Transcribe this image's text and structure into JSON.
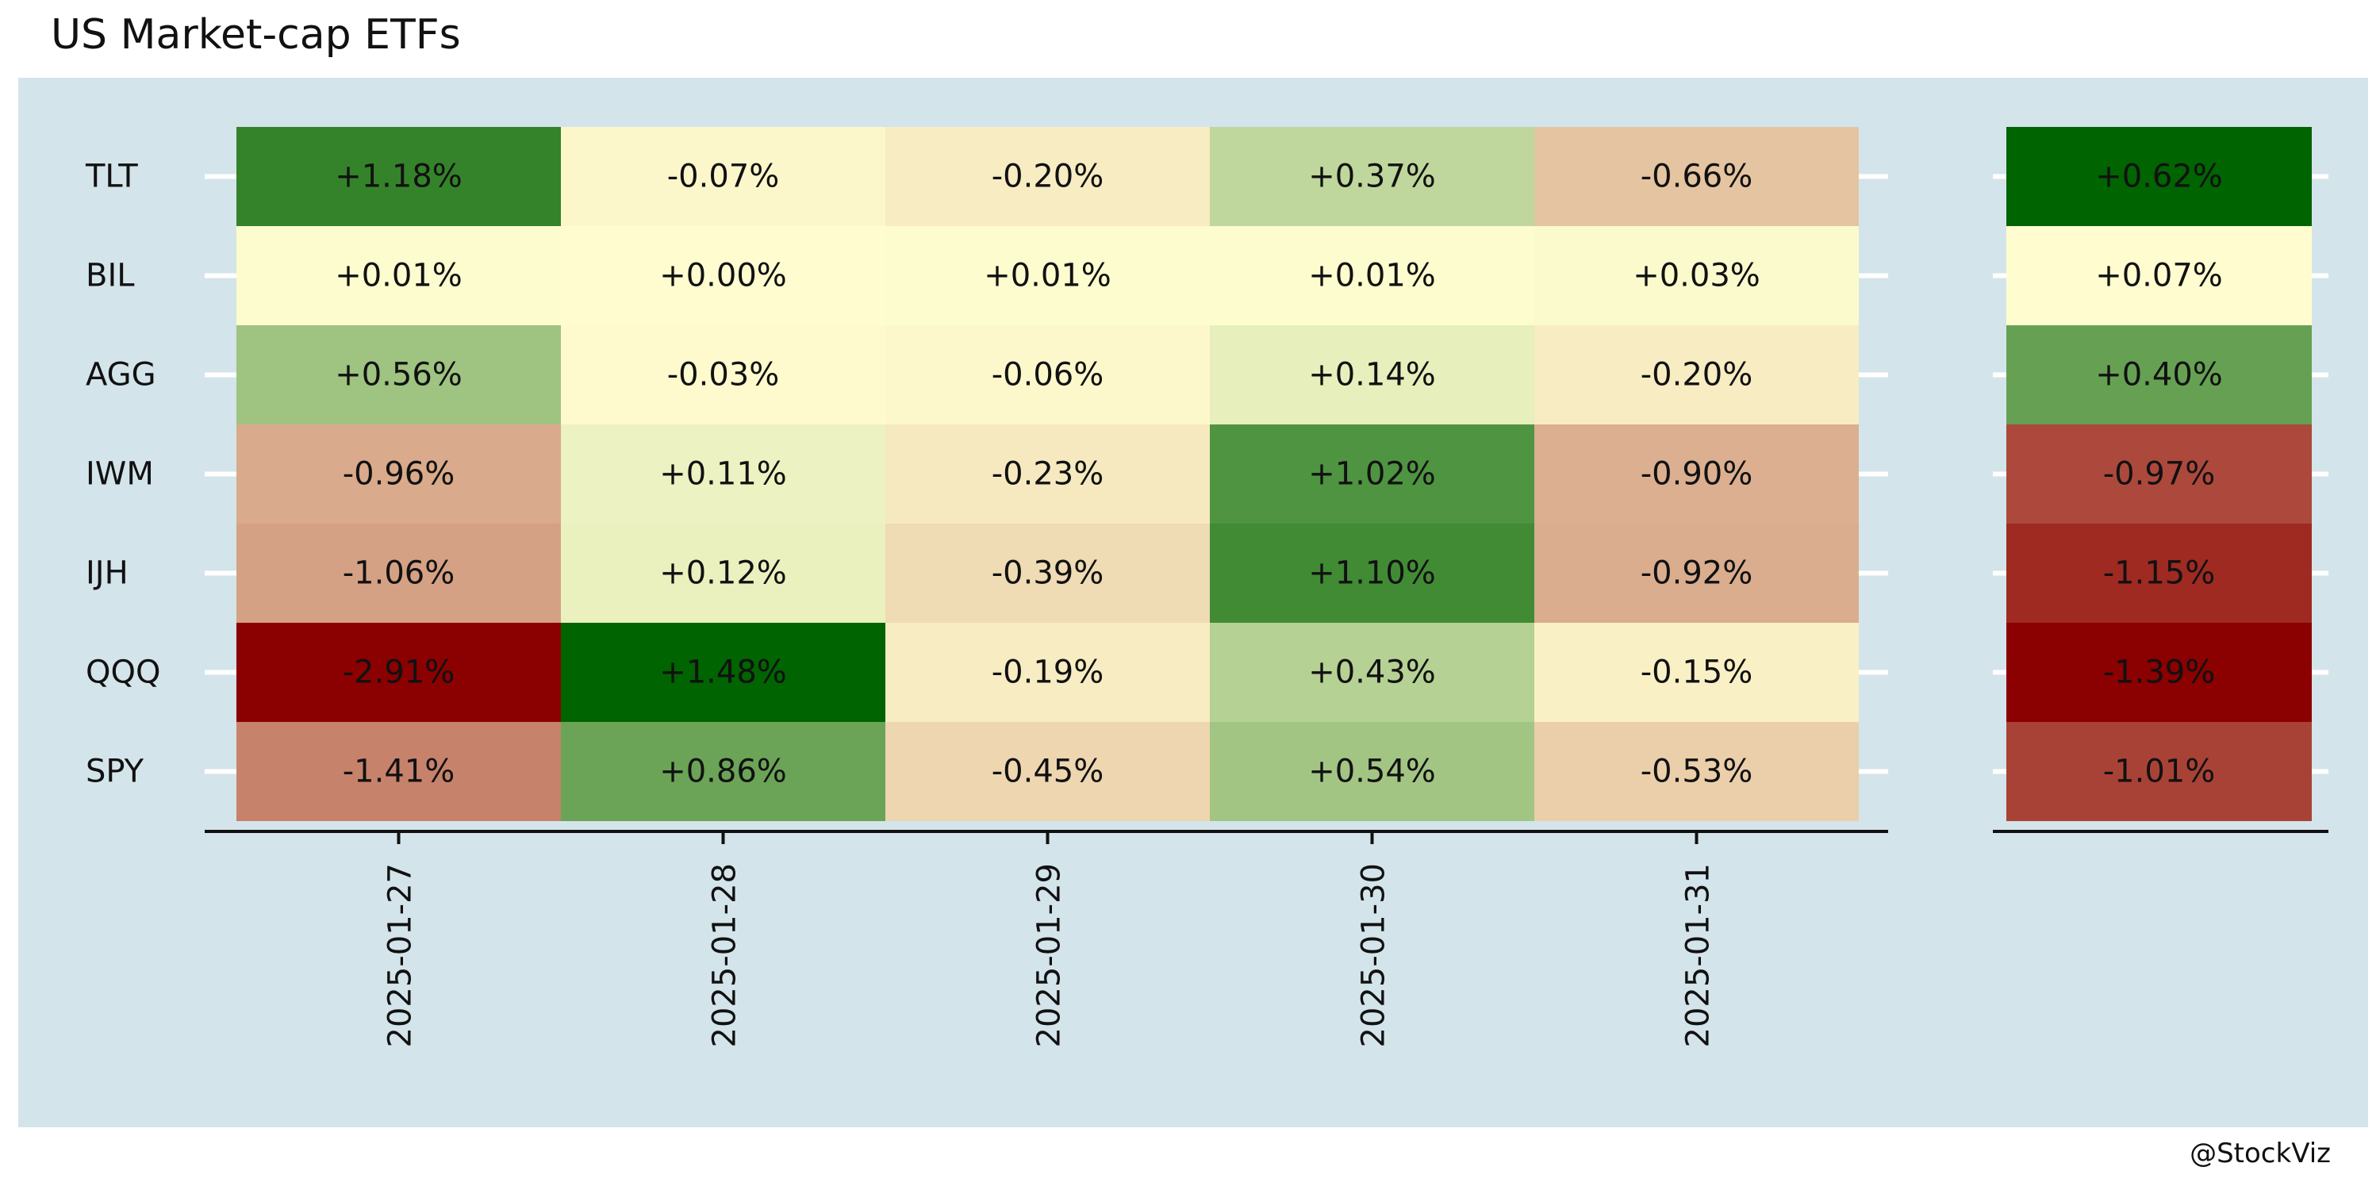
{
  "title": "US Market-cap ETFs",
  "credit": "@StockViz",
  "colors": {
    "panel_background": "#d4e4eb",
    "tick_marks": "#ffffff",
    "axis_line": "#111111",
    "text": "#111111",
    "scale_low": "#8b0000",
    "scale_mid": "#fffdd0",
    "scale_high": "#006400"
  },
  "chart_data": [
    {
      "type": "heatmap",
      "rows": [
        "TLT",
        "BIL",
        "AGG",
        "IWM",
        "IJH",
        "QQQ",
        "SPY"
      ],
      "columns": [
        "2025-01-27",
        "2025-01-28",
        "2025-01-29",
        "2025-01-30",
        "2025-01-31"
      ],
      "values": [
        [
          1.18,
          -0.07,
          -0.2,
          0.37,
          -0.66
        ],
        [
          0.01,
          0.0,
          0.01,
          0.01,
          0.03
        ],
        [
          0.56,
          -0.03,
          -0.06,
          0.14,
          -0.2
        ],
        [
          -0.96,
          0.11,
          -0.23,
          1.02,
          -0.9
        ],
        [
          -1.06,
          0.12,
          -0.39,
          1.1,
          -0.92
        ],
        [
          -2.91,
          1.48,
          -0.19,
          0.43,
          -0.15
        ],
        [
          -1.41,
          0.86,
          -0.45,
          0.54,
          -0.53
        ]
      ],
      "labels": [
        [
          "+1.18%",
          "-0.07%",
          "-0.20%",
          "+0.37%",
          "-0.66%"
        ],
        [
          "+0.01%",
          "+0.00%",
          "+0.01%",
          "+0.01%",
          "+0.03%"
        ],
        [
          "+0.56%",
          "-0.03%",
          "-0.06%",
          "+0.14%",
          "-0.20%"
        ],
        [
          "-0.96%",
          "+0.11%",
          "-0.23%",
          "+1.02%",
          "-0.90%"
        ],
        [
          "-1.06%",
          "+0.12%",
          "-0.39%",
          "+1.10%",
          "-0.92%"
        ],
        [
          "-2.91%",
          "+1.48%",
          "-0.19%",
          "+0.43%",
          "-0.15%"
        ],
        [
          "-1.41%",
          "+0.86%",
          "-0.45%",
          "+0.54%",
          "-0.53%"
        ]
      ],
      "color_scale": {
        "min": -2.91,
        "mid": 0.0,
        "max": 1.48
      },
      "grid": false,
      "legend": "none"
    },
    {
      "type": "heatmap",
      "rows": [
        "TLT",
        "BIL",
        "AGG",
        "IWM",
        "IJH",
        "QQQ",
        "SPY"
      ],
      "columns": [
        ""
      ],
      "values": [
        [
          0.62
        ],
        [
          0.07
        ],
        [
          0.4
        ],
        [
          -0.97
        ],
        [
          -1.15
        ],
        [
          -1.39
        ],
        [
          -1.01
        ]
      ],
      "labels": [
        [
          "+0.62%"
        ],
        [
          "+0.07%"
        ],
        [
          "+0.40%"
        ],
        [
          "-0.97%"
        ],
        [
          "-1.15%"
        ],
        [
          "-1.39%"
        ],
        [
          "-1.01%"
        ]
      ],
      "color_scale": {
        "min": -1.39,
        "mid": 0.07,
        "max": 0.62
      },
      "grid": false,
      "legend": "none"
    }
  ]
}
